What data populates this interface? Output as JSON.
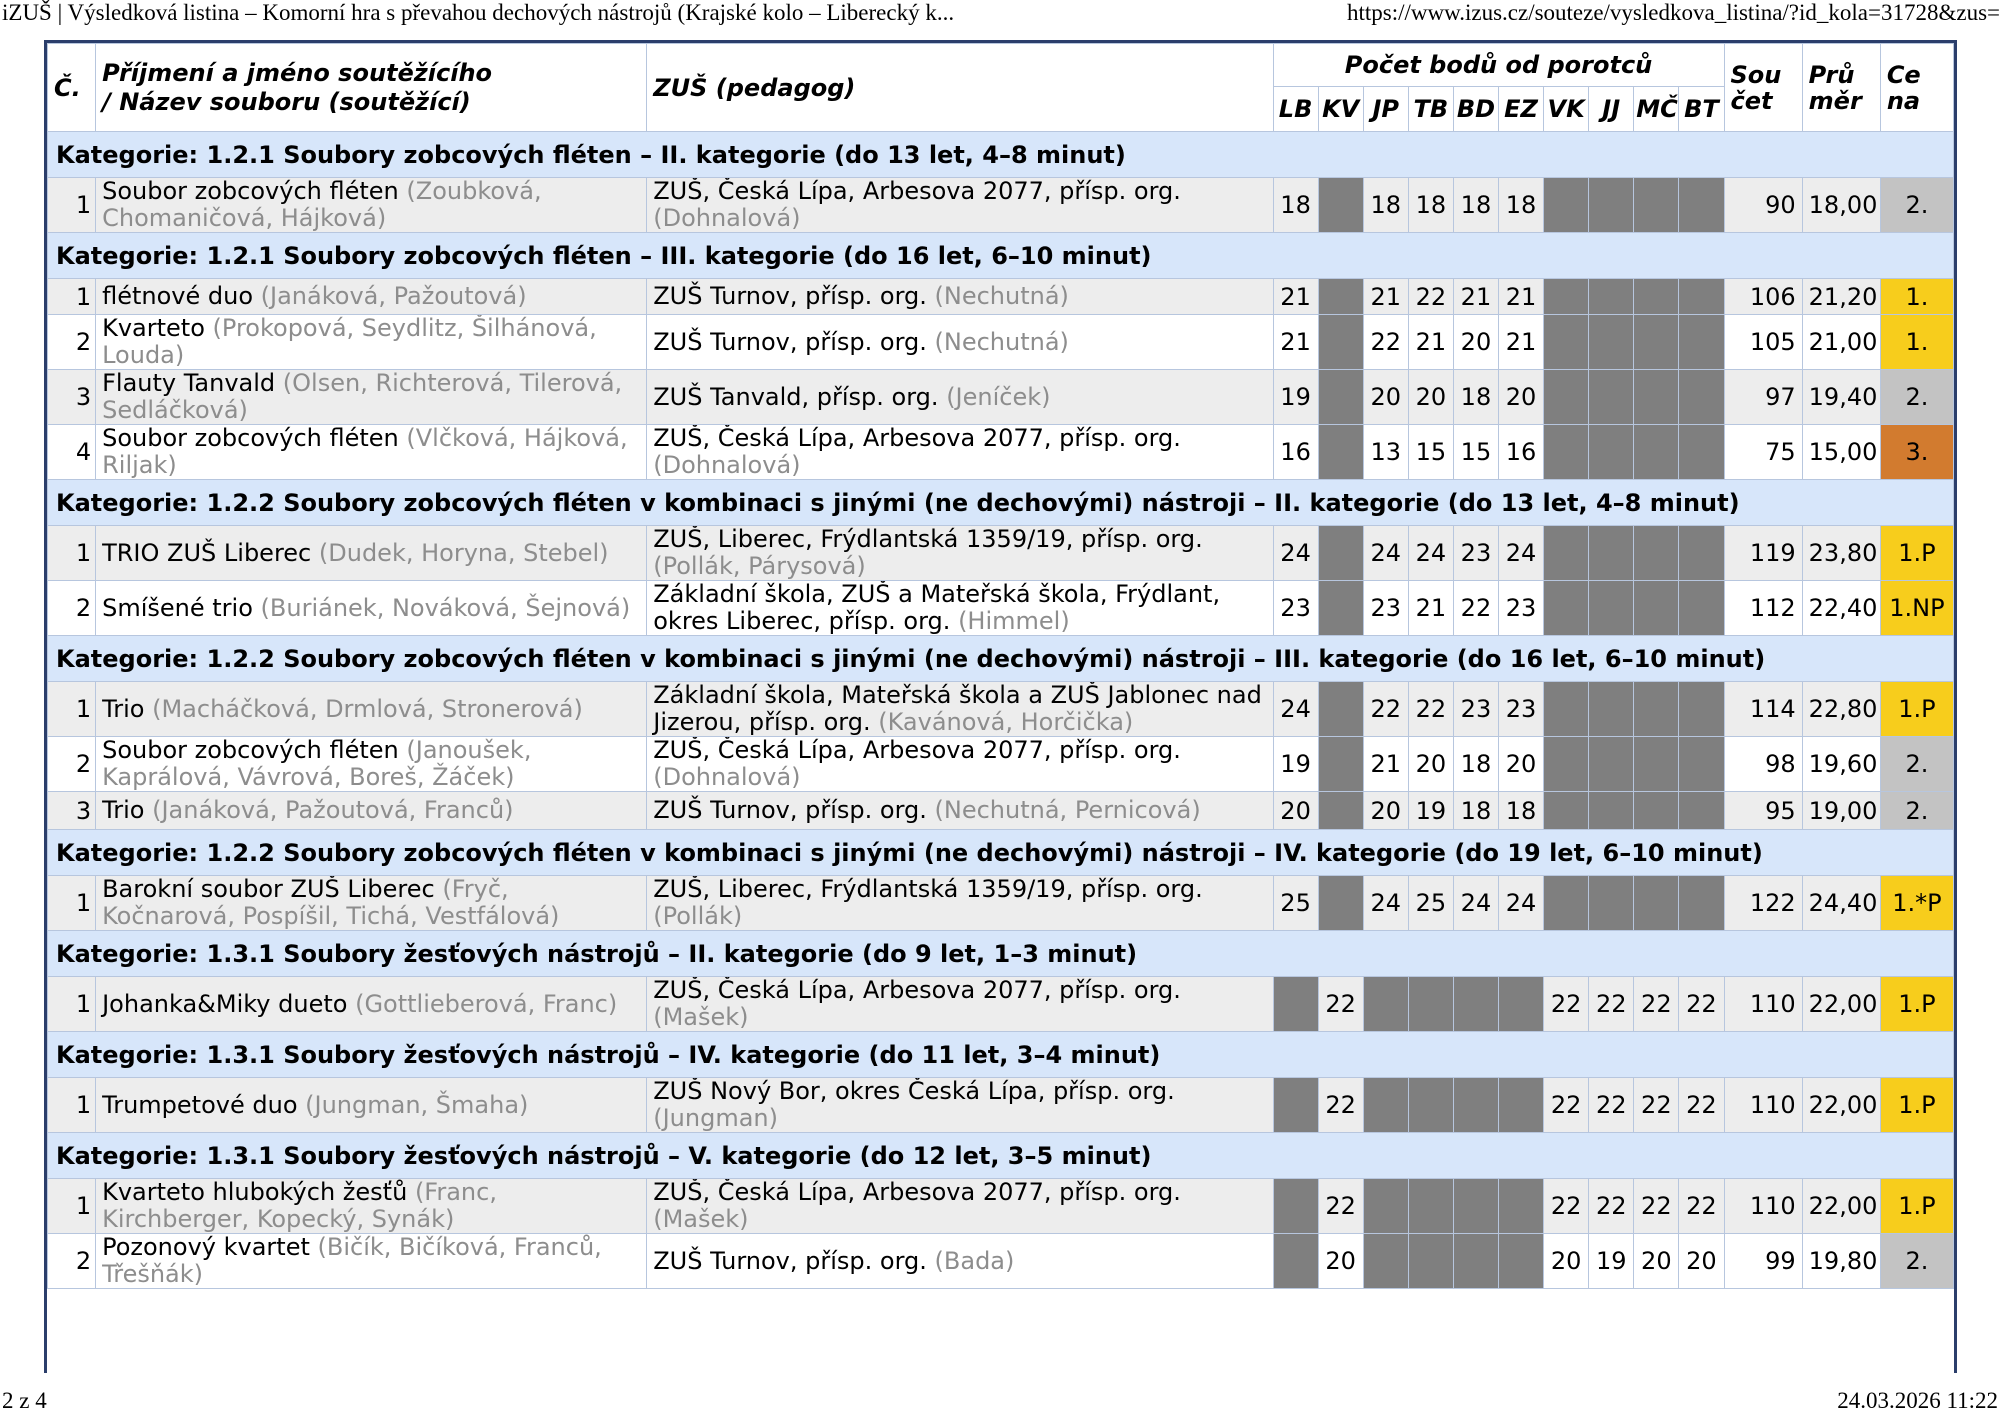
{
  "browser": {
    "title": "iZUŠ | Výsledková listina – Komorní hra s převahou dechových nástrojů (Krajské kolo – Liberecký k...",
    "url": "https://www.izus.cz/souteze/vysledkova_listina/?id_kola=31728&zus="
  },
  "footer": {
    "page": "2 z 4",
    "datetime": "24.03.2026 11:22"
  },
  "headers": {
    "no": "Č.",
    "name_line1": "Příjmení a jméno soutěžícího",
    "name_line2": "/ Název souboru (soutěžící)",
    "school": "ZUŠ (pedagog)",
    "points": "Počet bodů od porotců",
    "judges": [
      "LB",
      "KV",
      "JP",
      "TB",
      "BD",
      "EZ",
      "VK",
      "JJ",
      "MČ",
      "BT"
    ],
    "sum_line1": "Sou",
    "sum_line2": "čet",
    "avg_line1": "Prů",
    "avg_line2": "měr",
    "prize_line1": "Ce",
    "prize_line2": "na"
  },
  "groups": [
    {
      "category": "Kategorie: 1.2.1 Soubory zobcových fléten – II. kategorie (do 13 let, 4–8 minut)",
      "rows": [
        {
          "no": "1",
          "name": "Soubor zobcových fléten",
          "members": "(Zoubková, Chomaničová, Hájková)",
          "school": "ZUŠ, Česká Lípa, Arbesova 2077, přísp. org.",
          "teacher": "(Dohnalová)",
          "scores": [
            "18",
            "",
            "18",
            "18",
            "18",
            "18",
            "",
            "",
            "",
            ""
          ],
          "sum": "90",
          "avg": "18,00",
          "prize": "2.",
          "prize_color": "silver"
        }
      ]
    },
    {
      "category": "Kategorie: 1.2.1 Soubory zobcových fléten – III. kategorie (do 16 let, 6–10 minut)",
      "rows": [
        {
          "no": "1",
          "name": "flétnové duo",
          "members": "(Janáková, Pažoutová)",
          "school": "ZUŠ Turnov, přísp. org.",
          "teacher": "(Nechutná)",
          "scores": [
            "21",
            "",
            "21",
            "22",
            "21",
            "21",
            "",
            "",
            "",
            ""
          ],
          "sum": "106",
          "avg": "21,20",
          "prize": "1.",
          "prize_color": "gold"
        },
        {
          "no": "2",
          "name": "Kvarteto",
          "members": "(Prokopová, Seydlitz, Šilhánová, Louda)",
          "school": "ZUŠ Turnov, přísp. org.",
          "teacher": "(Nechutná)",
          "scores": [
            "21",
            "",
            "22",
            "21",
            "20",
            "21",
            "",
            "",
            "",
            ""
          ],
          "sum": "105",
          "avg": "21,00",
          "prize": "1.",
          "prize_color": "gold"
        },
        {
          "no": "3",
          "name": "Flauty Tanvald",
          "members": "(Olsen, Richterová, Tilerová, Sedláčková)",
          "school": "ZUŠ Tanvald, přísp. org.",
          "teacher": "(Jeníček)",
          "scores": [
            "19",
            "",
            "20",
            "20",
            "18",
            "20",
            "",
            "",
            "",
            ""
          ],
          "sum": "97",
          "avg": "19,40",
          "prize": "2.",
          "prize_color": "silver"
        },
        {
          "no": "4",
          "name": "Soubor zobcových fléten",
          "members": "(Vlčková, Hájková, Riljak)",
          "school": "ZUŠ, Česká Lípa, Arbesova 2077, přísp. org.",
          "teacher": "(Dohnalová)",
          "scores": [
            "16",
            "",
            "13",
            "15",
            "15",
            "16",
            "",
            "",
            "",
            ""
          ],
          "sum": "75",
          "avg": "15,00",
          "prize": "3.",
          "prize_color": "bronze"
        }
      ]
    },
    {
      "category": "Kategorie: 1.2.2 Soubory zobcových fléten v kombinaci s jinými (ne dechovými) nástroji – II. kategorie (do 13 let, 4–8 minut)",
      "rows": [
        {
          "no": "1",
          "name": "TRIO ZUŠ Liberec",
          "members": "(Dudek, Horyna, Stebel)",
          "school": "ZUŠ, Liberec, Frýdlantská 1359/19, přísp. org.",
          "teacher": "(Pollák, Párysová)",
          "scores": [
            "24",
            "",
            "24",
            "24",
            "23",
            "24",
            "",
            "",
            "",
            ""
          ],
          "sum": "119",
          "avg": "23,80",
          "prize": "1.P",
          "prize_color": "gold"
        },
        {
          "no": "2",
          "name": "Smíšené trio",
          "members": "(Buriánek, Nováková, Šejnová)",
          "school": "Základní škola, ZUŠ a Mateřská škola, Frýdlant, okres Liberec, přísp. org.",
          "teacher": "(Himmel)",
          "scores": [
            "23",
            "",
            "23",
            "21",
            "22",
            "23",
            "",
            "",
            "",
            ""
          ],
          "sum": "112",
          "avg": "22,40",
          "prize": "1.NP",
          "prize_color": "gold"
        }
      ]
    },
    {
      "category": "Kategorie: 1.2.2 Soubory zobcových fléten v kombinaci s jinými (ne dechovými) nástroji – III. kategorie (do 16 let, 6–10 minut)",
      "rows": [
        {
          "no": "1",
          "name": "Trio",
          "members": "(Macháčková, Drmlová, Stronerová)",
          "school": "Základní škola, Mateřská škola a ZUŠ Jablonec nad Jizerou, přísp. org.",
          "teacher": "(Kavánová, Horčička)",
          "scores": [
            "24",
            "",
            "22",
            "22",
            "23",
            "23",
            "",
            "",
            "",
            ""
          ],
          "sum": "114",
          "avg": "22,80",
          "prize": "1.P",
          "prize_color": "gold"
        },
        {
          "no": "2",
          "name": "Soubor zobcových fléten",
          "members": "(Janoušek, Kaprálová, Vávrová, Boreš, Žáček)",
          "school": "ZUŠ, Česká Lípa, Arbesova 2077, přísp. org.",
          "teacher": "(Dohnalová)",
          "scores": [
            "19",
            "",
            "21",
            "20",
            "18",
            "20",
            "",
            "",
            "",
            ""
          ],
          "sum": "98",
          "avg": "19,60",
          "prize": "2.",
          "prize_color": "silver"
        },
        {
          "no": "3",
          "name": "Trio",
          "members": "(Janáková, Pažoutová, Franců)",
          "school": "ZUŠ Turnov, přísp. org.",
          "teacher": "(Nechutná, Pernicová)",
          "scores": [
            "20",
            "",
            "20",
            "19",
            "18",
            "18",
            "",
            "",
            "",
            ""
          ],
          "sum": "95",
          "avg": "19,00",
          "prize": "2.",
          "prize_color": "silver"
        }
      ]
    },
    {
      "category": "Kategorie: 1.2.2 Soubory zobcových fléten v kombinaci s jinými (ne dechovými) nástroji – IV. kategorie (do 19 let, 6–10 minut)",
      "rows": [
        {
          "no": "1",
          "name": "Barokní soubor ZUŠ Liberec",
          "members": "(Fryč, Kočnarová, Pospíšil, Tichá, Vestfálová)",
          "school": "ZUŠ, Liberec, Frýdlantská 1359/19, přísp. org.",
          "teacher": "(Pollák)",
          "scores": [
            "25",
            "",
            "24",
            "25",
            "24",
            "24",
            "",
            "",
            "",
            ""
          ],
          "sum": "122",
          "avg": "24,40",
          "prize": "1.*P",
          "prize_color": "gold"
        }
      ]
    },
    {
      "category": "Kategorie: 1.3.1 Soubory žesťových nástrojů – II. kategorie (do 9 let, 1–3 minut)",
      "rows": [
        {
          "no": "1",
          "name": "Johanka&Miky dueto",
          "members": "(Gottlieberová, Franc)",
          "school": "ZUŠ, Česká Lípa, Arbesova 2077, přísp. org.",
          "teacher": "(Mašek)",
          "scores": [
            "",
            "22",
            "",
            "",
            "",
            "",
            "22",
            "22",
            "22",
            "22"
          ],
          "sum": "110",
          "avg": "22,00",
          "prize": "1.P",
          "prize_color": "gold"
        }
      ]
    },
    {
      "category": "Kategorie: 1.3.1 Soubory žesťových nástrojů – IV. kategorie (do 11 let, 3–4 minut)",
      "rows": [
        {
          "no": "1",
          "name": "Trumpetové duo",
          "members": "(Jungman, Šmaha)",
          "school": "ZUŠ Nový Bor, okres Česká Lípa, přísp. org.",
          "teacher": "(Jungman)",
          "scores": [
            "",
            "22",
            "",
            "",
            "",
            "",
            "22",
            "22",
            "22",
            "22"
          ],
          "sum": "110",
          "avg": "22,00",
          "prize": "1.P",
          "prize_color": "gold"
        }
      ]
    },
    {
      "category": "Kategorie: 1.3.1 Soubory žesťových nástrojů – V. kategorie (do 12 let, 3–5 minut)",
      "rows": [
        {
          "no": "1",
          "name": "Kvarteto hlubokých žesťů",
          "members": "(Franc, Kirchberger, Kopecký, Synák)",
          "school": "ZUŠ, Česká Lípa, Arbesova 2077, přísp. org.",
          "teacher": "(Mašek)",
          "scores": [
            "",
            "22",
            "",
            "",
            "",
            "",
            "22",
            "22",
            "22",
            "22"
          ],
          "sum": "110",
          "avg": "22,00",
          "prize": "1.P",
          "prize_color": "gold"
        },
        {
          "no": "2",
          "name": "Pozonový kvartet",
          "members": "(Bičík, Bičíková, Franců, Třešňák)",
          "school": "ZUŠ Turnov, přísp. org.",
          "teacher": "(Bada)",
          "scores": [
            "",
            "20",
            "",
            "",
            "",
            "",
            "20",
            "19",
            "20",
            "20"
          ],
          "sum": "99",
          "avg": "19,80",
          "prize": "2.",
          "prize_color": "silver"
        }
      ]
    }
  ]
}
